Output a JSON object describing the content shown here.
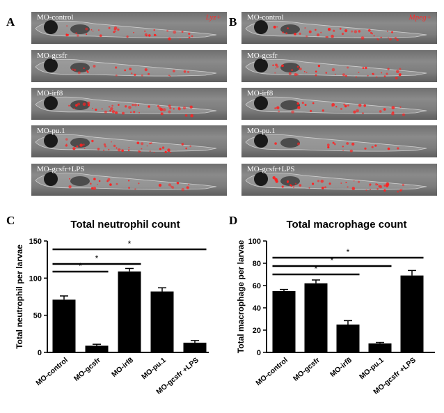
{
  "panels": {
    "A": {
      "letter": "A",
      "marker": "Lyz+",
      "images": [
        {
          "label": "MO-control",
          "red_level": 0.55
        },
        {
          "label": "MO-gcsfr",
          "red_level": 0.25
        },
        {
          "label": "MO-irf8",
          "red_level": 0.8
        },
        {
          "label": "MO-pu.1",
          "red_level": 0.65
        },
        {
          "label": "MO-gcsfr+LPS",
          "red_level": 0.3
        }
      ]
    },
    "B": {
      "letter": "B",
      "marker": "Mpeg+",
      "images": [
        {
          "label": "MO-control",
          "red_level": 0.65
        },
        {
          "label": "MO-gcsfr",
          "red_level": 0.7
        },
        {
          "label": "MO-irf8",
          "red_level": 0.45
        },
        {
          "label": "MO-pu.1",
          "red_level": 0.15
        },
        {
          "label": "MO-gcsfr+LPS",
          "red_level": 0.75
        }
      ]
    },
    "C": {
      "letter": "C"
    },
    "D": {
      "letter": "D"
    }
  },
  "chart_data": [
    {
      "type": "bar",
      "title": "Total neutrophil count",
      "ylabel": "Total neutrophil per larvae",
      "xlabel": "",
      "categories": [
        "MO-control",
        "MO-gcsfr",
        "MO-irf8",
        "MO-pu.1",
        "MO-gcsfr +LPS"
      ],
      "values": [
        71,
        9,
        109,
        82,
        13
      ],
      "errors": [
        5,
        2,
        4,
        5,
        3
      ],
      "ylim": [
        0,
        150
      ],
      "yticks": [
        "0",
        "50",
        "100",
        "150"
      ],
      "bar_color": "#000000",
      "significance": [
        {
          "from": 0,
          "to": 1,
          "label": "*"
        },
        {
          "from": 0,
          "to": 2,
          "label": "*"
        },
        {
          "from": 0,
          "to": 4,
          "label": "*"
        }
      ]
    },
    {
      "type": "bar",
      "title": "Total macrophage count",
      "ylabel": "Total macrophage per larvae",
      "xlabel": "",
      "categories": [
        "MO-control",
        "MO-gcsfr",
        "MO-irf8",
        "MO-pu.1",
        "MO-gcsfr +LPS"
      ],
      "values": [
        55,
        62,
        25,
        8,
        69
      ],
      "errors": [
        1.5,
        3,
        3.5,
        1,
        4.5
      ],
      "ylim": [
        0,
        100
      ],
      "yticks": [
        "0",
        "20",
        "40",
        "60",
        "80",
        "100"
      ],
      "bar_color": "#000000",
      "significance": [
        {
          "from": 0,
          "to": 2,
          "label": "*"
        },
        {
          "from": 0,
          "to": 3,
          "label": "*"
        },
        {
          "from": 0,
          "to": 4,
          "label": "*"
        }
      ]
    }
  ]
}
